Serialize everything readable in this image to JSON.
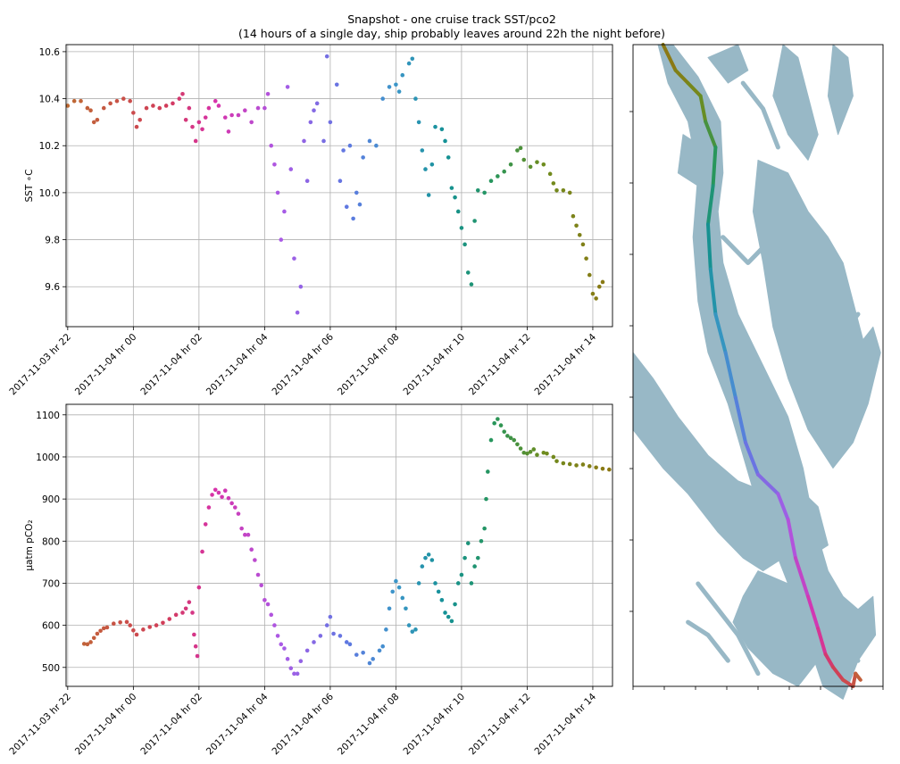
{
  "title_line1": "Snapshot - one cruise track SST/pco2",
  "title_line2": "(14 hours of a single day, ship probably leaves around 22h the night before)",
  "chart_data": [
    {
      "type": "scatter",
      "ylabel": "SST ∘C",
      "xlim": [
        -2.05,
        14.6
      ],
      "ylim": [
        9.43,
        10.63
      ],
      "yticks": [
        9.6,
        9.8,
        10.0,
        10.2,
        10.4,
        10.6
      ],
      "ytick_labels": [
        "9.6",
        "9.8",
        "10.0",
        "10.2",
        "10.4",
        "10.6"
      ],
      "xticks": [
        -2,
        0,
        2,
        4,
        6,
        8,
        10,
        12,
        14
      ],
      "xtick_labels": [
        "2017-11-03 hr 22",
        "2017-11-04 hr 00",
        "2017-11-04 hr 02",
        "2017-11-04 hr 04",
        "2017-11-04 hr 06",
        "2017-11-04 hr 08",
        "2017-11-04 hr 10",
        "2017-11-04 hr 12",
        "2017-11-04 hr 14"
      ],
      "grid": true,
      "color_by": "time",
      "points": [
        [
          -2.0,
          10.37
        ],
        [
          -1.8,
          10.39
        ],
        [
          -1.6,
          10.39
        ],
        [
          -1.4,
          10.36
        ],
        [
          -1.3,
          10.35
        ],
        [
          -1.2,
          10.3
        ],
        [
          -1.1,
          10.31
        ],
        [
          -0.9,
          10.36
        ],
        [
          -0.7,
          10.38
        ],
        [
          -0.5,
          10.39
        ],
        [
          -0.3,
          10.4
        ],
        [
          -0.1,
          10.39
        ],
        [
          0.0,
          10.34
        ],
        [
          0.1,
          10.28
        ],
        [
          0.2,
          10.31
        ],
        [
          0.4,
          10.36
        ],
        [
          0.6,
          10.37
        ],
        [
          0.8,
          10.36
        ],
        [
          1.0,
          10.37
        ],
        [
          1.2,
          10.38
        ],
        [
          1.4,
          10.4
        ],
        [
          1.5,
          10.42
        ],
        [
          1.6,
          10.31
        ],
        [
          1.7,
          10.36
        ],
        [
          1.8,
          10.28
        ],
        [
          1.9,
          10.22
        ],
        [
          2.0,
          10.3
        ],
        [
          2.1,
          10.27
        ],
        [
          2.2,
          10.32
        ],
        [
          2.3,
          10.36
        ],
        [
          2.5,
          10.39
        ],
        [
          2.6,
          10.37
        ],
        [
          2.8,
          10.32
        ],
        [
          2.9,
          10.26
        ],
        [
          3.0,
          10.33
        ],
        [
          3.2,
          10.33
        ],
        [
          3.4,
          10.35
        ],
        [
          3.6,
          10.3
        ],
        [
          3.8,
          10.36
        ],
        [
          4.0,
          10.36
        ],
        [
          4.1,
          10.42
        ],
        [
          4.2,
          10.2
        ],
        [
          4.3,
          10.12
        ],
        [
          4.4,
          10.0
        ],
        [
          4.5,
          9.8
        ],
        [
          4.6,
          9.92
        ],
        [
          4.7,
          10.45
        ],
        [
          4.8,
          10.1
        ],
        [
          4.9,
          9.72
        ],
        [
          5.0,
          9.49
        ],
        [
          5.1,
          9.6
        ],
        [
          5.2,
          10.22
        ],
        [
          5.3,
          10.05
        ],
        [
          5.4,
          10.3
        ],
        [
          5.5,
          10.35
        ],
        [
          5.6,
          10.38
        ],
        [
          5.8,
          10.22
        ],
        [
          5.9,
          10.58
        ],
        [
          6.0,
          10.3
        ],
        [
          6.2,
          10.46
        ],
        [
          6.3,
          10.05
        ],
        [
          6.4,
          10.18
        ],
        [
          6.5,
          9.94
        ],
        [
          6.6,
          10.2
        ],
        [
          6.7,
          9.89
        ],
        [
          6.8,
          10.0
        ],
        [
          6.9,
          9.95
        ],
        [
          7.0,
          10.15
        ],
        [
          7.2,
          10.22
        ],
        [
          7.4,
          10.2
        ],
        [
          7.6,
          10.4
        ],
        [
          7.8,
          10.45
        ],
        [
          8.0,
          10.46
        ],
        [
          8.1,
          10.43
        ],
        [
          8.2,
          10.5
        ],
        [
          8.4,
          10.55
        ],
        [
          8.5,
          10.57
        ],
        [
          8.6,
          10.4
        ],
        [
          8.7,
          10.3
        ],
        [
          8.8,
          10.18
        ],
        [
          8.9,
          10.1
        ],
        [
          9.0,
          9.99
        ],
        [
          9.1,
          10.12
        ],
        [
          9.2,
          10.28
        ],
        [
          9.4,
          10.27
        ],
        [
          9.5,
          10.22
        ],
        [
          9.6,
          10.15
        ],
        [
          9.7,
          10.02
        ],
        [
          9.8,
          9.98
        ],
        [
          9.9,
          9.92
        ],
        [
          10.0,
          9.85
        ],
        [
          10.1,
          9.78
        ],
        [
          10.2,
          9.66
        ],
        [
          10.3,
          9.61
        ],
        [
          10.4,
          9.88
        ],
        [
          10.5,
          10.01
        ],
        [
          10.7,
          10.0
        ],
        [
          10.9,
          10.05
        ],
        [
          11.1,
          10.07
        ],
        [
          11.3,
          10.09
        ],
        [
          11.5,
          10.12
        ],
        [
          11.7,
          10.18
        ],
        [
          11.8,
          10.19
        ],
        [
          11.9,
          10.14
        ],
        [
          12.1,
          10.11
        ],
        [
          12.3,
          10.13
        ],
        [
          12.5,
          10.12
        ],
        [
          12.7,
          10.08
        ],
        [
          12.8,
          10.04
        ],
        [
          12.9,
          10.01
        ],
        [
          13.1,
          10.01
        ],
        [
          13.3,
          10.0
        ],
        [
          13.4,
          9.9
        ],
        [
          13.5,
          9.86
        ],
        [
          13.6,
          9.82
        ],
        [
          13.7,
          9.78
        ],
        [
          13.8,
          9.72
        ],
        [
          13.9,
          9.65
        ],
        [
          14.0,
          9.57
        ],
        [
          14.1,
          9.55
        ],
        [
          14.2,
          9.6
        ],
        [
          14.3,
          9.62
        ]
      ]
    },
    {
      "type": "scatter",
      "ylabel": "μatm pCO₂",
      "xlim": [
        -2.05,
        14.6
      ],
      "ylim": [
        455,
        1125
      ],
      "yticks": [
        500,
        600,
        700,
        800,
        900,
        1000,
        1100
      ],
      "ytick_labels": [
        "500",
        "600",
        "700",
        "800",
        "900",
        "1000",
        "1100"
      ],
      "xticks": [
        -2,
        0,
        2,
        4,
        6,
        8,
        10,
        12,
        14
      ],
      "xtick_labels": [
        "2017-11-03 hr 22",
        "2017-11-04 hr 00",
        "2017-11-04 hr 02",
        "2017-11-04 hr 04",
        "2017-11-04 hr 06",
        "2017-11-04 hr 08",
        "2017-11-04 hr 10",
        "2017-11-04 hr 12",
        "2017-11-04 hr 14"
      ],
      "grid": true,
      "color_by": "time",
      "points": [
        [
          -1.5,
          556
        ],
        [
          -1.4,
          555
        ],
        [
          -1.3,
          560
        ],
        [
          -1.2,
          570
        ],
        [
          -1.1,
          580
        ],
        [
          -1.0,
          587
        ],
        [
          -0.9,
          593
        ],
        [
          -0.8,
          595
        ],
        [
          -0.6,
          604
        ],
        [
          -0.4,
          607
        ],
        [
          -0.2,
          608
        ],
        [
          -0.1,
          600
        ],
        [
          0.0,
          588
        ],
        [
          0.1,
          578
        ],
        [
          0.3,
          590
        ],
        [
          0.5,
          596
        ],
        [
          0.7,
          600
        ],
        [
          0.9,
          606
        ],
        [
          1.1,
          615
        ],
        [
          1.3,
          625
        ],
        [
          1.5,
          630
        ],
        [
          1.6,
          640
        ],
        [
          1.7,
          655
        ],
        [
          1.8,
          630
        ],
        [
          1.85,
          578
        ],
        [
          1.9,
          550
        ],
        [
          1.95,
          527
        ],
        [
          2.0,
          690
        ],
        [
          2.1,
          775
        ],
        [
          2.2,
          840
        ],
        [
          2.3,
          880
        ],
        [
          2.4,
          910
        ],
        [
          2.5,
          922
        ],
        [
          2.6,
          915
        ],
        [
          2.7,
          905
        ],
        [
          2.8,
          920
        ],
        [
          2.9,
          902
        ],
        [
          3.0,
          890
        ],
        [
          3.1,
          880
        ],
        [
          3.2,
          865
        ],
        [
          3.3,
          830
        ],
        [
          3.4,
          815
        ],
        [
          3.5,
          815
        ],
        [
          3.6,
          780
        ],
        [
          3.7,
          755
        ],
        [
          3.8,
          720
        ],
        [
          3.9,
          695
        ],
        [
          4.0,
          660
        ],
        [
          4.1,
          650
        ],
        [
          4.2,
          625
        ],
        [
          4.3,
          600
        ],
        [
          4.4,
          575
        ],
        [
          4.5,
          555
        ],
        [
          4.6,
          545
        ],
        [
          4.7,
          520
        ],
        [
          4.8,
          498
        ],
        [
          4.9,
          485
        ],
        [
          5.0,
          485
        ],
        [
          5.1,
          515
        ],
        [
          5.3,
          540
        ],
        [
          5.5,
          560
        ],
        [
          5.7,
          575
        ],
        [
          5.9,
          600
        ],
        [
          6.0,
          620
        ],
        [
          6.1,
          580
        ],
        [
          6.3,
          575
        ],
        [
          6.5,
          560
        ],
        [
          6.6,
          555
        ],
        [
          6.8,
          530
        ],
        [
          7.0,
          535
        ],
        [
          7.2,
          510
        ],
        [
          7.3,
          520
        ],
        [
          7.5,
          540
        ],
        [
          7.6,
          550
        ],
        [
          7.7,
          590
        ],
        [
          7.8,
          640
        ],
        [
          7.9,
          680
        ],
        [
          8.0,
          705
        ],
        [
          8.1,
          690
        ],
        [
          8.2,
          665
        ],
        [
          8.3,
          640
        ],
        [
          8.4,
          600
        ],
        [
          8.5,
          585
        ],
        [
          8.6,
          590
        ],
        [
          8.7,
          700
        ],
        [
          8.8,
          740
        ],
        [
          8.9,
          760
        ],
        [
          9.0,
          768
        ],
        [
          9.1,
          755
        ],
        [
          9.2,
          700
        ],
        [
          9.3,
          680
        ],
        [
          9.4,
          660
        ],
        [
          9.5,
          630
        ],
        [
          9.6,
          620
        ],
        [
          9.7,
          610
        ],
        [
          9.8,
          650
        ],
        [
          9.9,
          700
        ],
        [
          10.0,
          720
        ],
        [
          10.1,
          760
        ],
        [
          10.2,
          795
        ],
        [
          10.3,
          700
        ],
        [
          10.4,
          740
        ],
        [
          10.5,
          760
        ],
        [
          10.6,
          800
        ],
        [
          10.7,
          830
        ],
        [
          10.75,
          900
        ],
        [
          10.8,
          965
        ],
        [
          10.9,
          1040
        ],
        [
          11.0,
          1080
        ],
        [
          11.1,
          1090
        ],
        [
          11.2,
          1075
        ],
        [
          11.3,
          1060
        ],
        [
          11.4,
          1050
        ],
        [
          11.5,
          1045
        ],
        [
          11.6,
          1040
        ],
        [
          11.7,
          1030
        ],
        [
          11.8,
          1020
        ],
        [
          11.9,
          1010
        ],
        [
          12.0,
          1008
        ],
        [
          12.1,
          1012
        ],
        [
          12.2,
          1018
        ],
        [
          12.3,
          1005
        ],
        [
          12.5,
          1010
        ],
        [
          12.6,
          1008
        ],
        [
          12.8,
          1000
        ],
        [
          12.9,
          990
        ],
        [
          13.1,
          985
        ],
        [
          13.3,
          983
        ],
        [
          13.5,
          980
        ],
        [
          13.7,
          982
        ],
        [
          13.9,
          978
        ],
        [
          14.1,
          975
        ],
        [
          14.3,
          972
        ],
        [
          14.5,
          970
        ]
      ]
    }
  ],
  "map": {
    "type": "map",
    "water_color": "#98b8c6",
    "track_color_by": "time",
    "track": [
      [
        0.12,
        0.0
      ],
      [
        0.17,
        0.04
      ],
      [
        0.22,
        0.06
      ],
      [
        0.27,
        0.08
      ],
      [
        0.29,
        0.12
      ],
      [
        0.33,
        0.16
      ],
      [
        0.32,
        0.22
      ],
      [
        0.3,
        0.28
      ],
      [
        0.31,
        0.35
      ],
      [
        0.33,
        0.42
      ],
      [
        0.37,
        0.48
      ],
      [
        0.41,
        0.55
      ],
      [
        0.45,
        0.62
      ],
      [
        0.5,
        0.67
      ],
      [
        0.58,
        0.7
      ],
      [
        0.62,
        0.74
      ],
      [
        0.65,
        0.8
      ],
      [
        0.7,
        0.86
      ],
      [
        0.74,
        0.91
      ],
      [
        0.77,
        0.95
      ],
      [
        0.8,
        0.97
      ],
      [
        0.84,
        0.99
      ],
      [
        0.88,
        1.0
      ],
      [
        0.89,
        0.98
      ],
      [
        0.91,
        0.99
      ]
    ]
  }
}
